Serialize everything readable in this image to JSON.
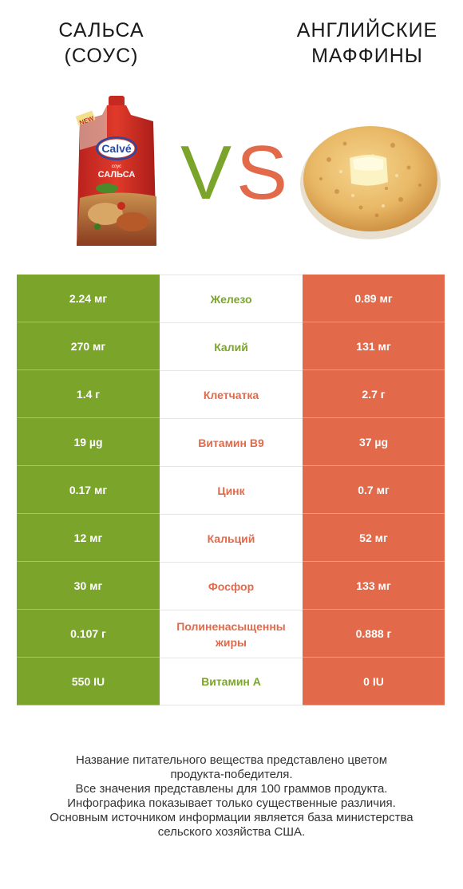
{
  "colors": {
    "green": "#7ba52a",
    "red": "#e2694a",
    "mid_green": "#7ba52a",
    "mid_red": "#e2694a"
  },
  "header": {
    "left_title": "САЛЬСА\n(СОУС)",
    "right_title": "АНГЛИЙСКИЕ\nМАФФИНЫ",
    "vs_left": "V",
    "vs_right": "S"
  },
  "product_left": {
    "brand": "Calvé",
    "label": "САЛЬСА",
    "badge": "NEW",
    "sub": "соус"
  },
  "chart_data": {
    "type": "table",
    "columns": [
      "САЛЬСА (СОУС)",
      "",
      "АНГЛИЙСКИЕ МАФФИНЫ"
    ],
    "rows": [
      {
        "nutrient": "Железо",
        "left": "2.24 мг",
        "right": "0.89 мг",
        "winner": "left"
      },
      {
        "nutrient": "Калий",
        "left": "270 мг",
        "right": "131 мг",
        "winner": "left"
      },
      {
        "nutrient": "Клетчатка",
        "left": "1.4 г",
        "right": "2.7 г",
        "winner": "right"
      },
      {
        "nutrient": "Витамин B9",
        "left": "19 µg",
        "right": "37 µg",
        "winner": "right"
      },
      {
        "nutrient": "Цинк",
        "left": "0.17 мг",
        "right": "0.7 мг",
        "winner": "right"
      },
      {
        "nutrient": "Кальций",
        "left": "12 мг",
        "right": "52 мг",
        "winner": "right"
      },
      {
        "nutrient": "Фосфор",
        "left": "30 мг",
        "right": "133 мг",
        "winner": "right"
      },
      {
        "nutrient": "Полиненасыщенны жиры",
        "left": "0.107 г",
        "right": "0.888 г",
        "winner": "right"
      },
      {
        "nutrient": "Витамин A",
        "left": "550 IU",
        "right": "0 IU",
        "winner": "left"
      }
    ]
  },
  "footnote": "Название питательного вещества представлено цветом\nпродукта-победителя.\nВсе значения представлены для 100 граммов продукта.\nИнфографика показывает только существенные различия.\nОсновным источником информации является база министерства\nсельского хозяйства США."
}
